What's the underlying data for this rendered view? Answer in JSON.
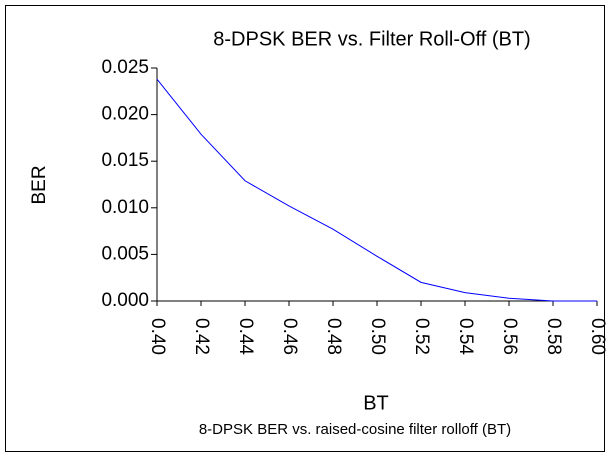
{
  "chart_data": {
    "type": "line",
    "title": "8-DPSK BER vs. Filter Roll-Off (BT)",
    "ylabel": "BER",
    "xlabel": "BT",
    "caption": "8-DPSK BER vs. raised-cosine filter rolloff (BT)",
    "x": [
      0.4,
      0.42,
      0.44,
      0.46,
      0.48,
      0.5,
      0.52,
      0.54,
      0.56,
      0.58,
      0.6
    ],
    "series": [
      {
        "name": "BER",
        "color": "#0000ff",
        "values": [
          0.0238,
          0.0179,
          0.0129,
          0.0102,
          0.0077,
          0.0048,
          0.002,
          0.0009,
          0.0003,
          0.0,
          0.0
        ]
      }
    ],
    "xlim": [
      0.4,
      0.6
    ],
    "xticks": [
      {
        "value": 0.4,
        "label": "0.40"
      },
      0.42,
      0.44,
      0.46,
      0.48,
      {
        "value": 0.5,
        "label": "0.50"
      },
      0.52,
      0.54,
      0.56,
      0.58,
      {
        "value": 0.6,
        "label": "0.60"
      }
    ],
    "ylim": [
      0,
      0.025
    ],
    "yticks": [
      {
        "value": 0,
        "label": "0.000"
      },
      0.005,
      {
        "value": 0.01,
        "label": "0.010"
      },
      0.015,
      {
        "value": 0.02,
        "label": "0.020"
      },
      0.025
    ],
    "xlabel_color": "#0000ff",
    "grid": false
  }
}
